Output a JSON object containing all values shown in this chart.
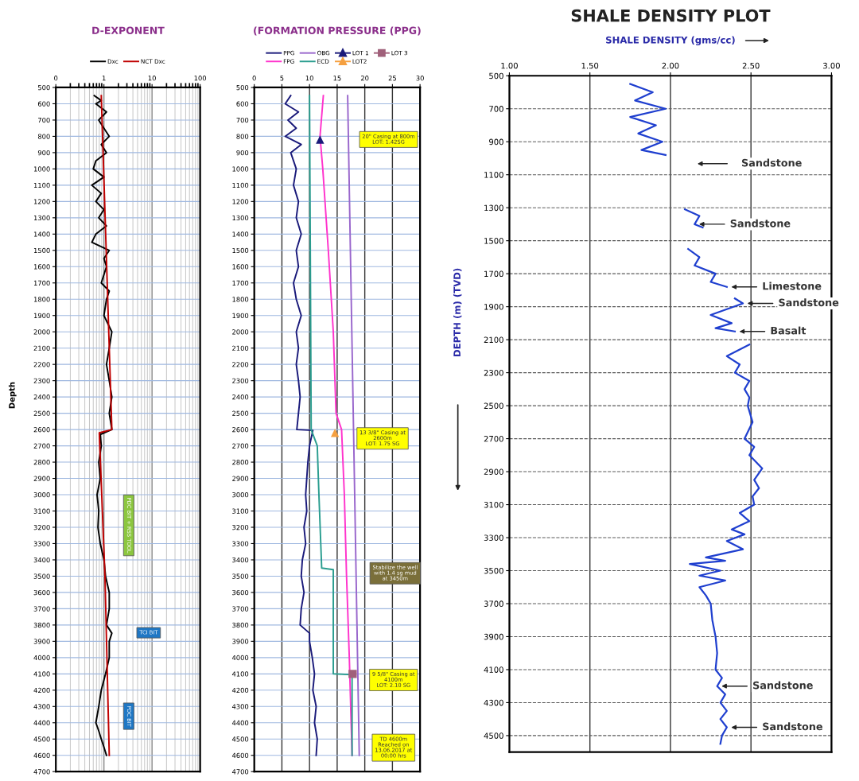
{
  "chart_data": [
    {
      "type": "line",
      "orientation": "horizontal",
      "title": "D-EXPONENT",
      "ylabel": "Depth",
      "log": "x",
      "grid": true,
      "legend": "top",
      "xlim": [
        0.1,
        100
      ],
      "xticks": [
        {
          "value": 0.1,
          "label": "0"
        },
        1,
        10,
        100
      ],
      "ylim": [
        4700,
        500
      ],
      "yticks": [
        500,
        600,
        700,
        800,
        900,
        1000,
        1100,
        1200,
        1300,
        1400,
        1500,
        1600,
        1700,
        1800,
        1900,
        2000,
        2100,
        2200,
        2300,
        2400,
        2500,
        2600,
        2700,
        2800,
        2900,
        3000,
        3100,
        3200,
        3300,
        3400,
        3500,
        3600,
        3700,
        3800,
        3900,
        4000,
        4100,
        4200,
        4300,
        4400,
        4500,
        4600,
        4700
      ],
      "series": [
        {
          "name": "Dxc",
          "color": "#000000",
          "x": [
            550,
            580,
            600,
            650,
            700,
            750,
            800,
            850,
            900,
            950,
            1000,
            1050,
            1100,
            1150,
            1200,
            1250,
            1300,
            1350,
            1400,
            1450,
            1500,
            1550,
            1600,
            1700,
            1750,
            1800,
            1900,
            2000,
            2100,
            2200,
            2300,
            2400,
            2500,
            2600,
            2630,
            2700,
            2800,
            2900,
            3000,
            3100,
            3200,
            3300,
            3400,
            3500,
            3600,
            3700,
            3800,
            3850,
            3900,
            4000,
            4100,
            4200,
            4300,
            4400,
            4450,
            4500,
            4550,
            4600
          ],
          "values": [
            0.63,
            0.88,
            0.68,
            1.13,
            0.78,
            1.0,
            1.29,
            0.88,
            1.13,
            0.68,
            0.6,
            1.0,
            0.56,
            0.88,
            0.68,
            1.0,
            0.78,
            1.13,
            0.68,
            0.56,
            1.29,
            1.0,
            1.13,
            0.88,
            1.29,
            1.13,
            1.0,
            1.46,
            1.29,
            1.13,
            1.29,
            1.46,
            1.29,
            1.46,
            0.84,
            0.88,
            0.78,
            0.84,
            0.72,
            0.78,
            0.75,
            0.84,
            1.0,
            1.08,
            1.29,
            1.29,
            1.13,
            1.46,
            1.29,
            1.29,
            1.08,
            0.88,
            0.78,
            0.68,
            0.78,
            0.88,
            1.0,
            1.13
          ]
        },
        {
          "name": "NCT Dxc",
          "color": "#c00000",
          "x": [
            550,
            2600,
            2620,
            3500,
            4600
          ],
          "values": [
            0.88,
            1.46,
            0.8,
            1.05,
            1.29
          ]
        }
      ],
      "annotations": [
        "PDC BIT + RSS TOOL",
        "TCI BIT",
        "PDC BIT"
      ]
    },
    {
      "type": "line",
      "orientation": "horizontal",
      "title": "(FORMATION PRESSURE (PPG)",
      "grid": true,
      "legend": "top",
      "xlim": [
        0,
        30
      ],
      "xticks": [
        0,
        5,
        10,
        15,
        20,
        25,
        30
      ],
      "ylim": [
        4700,
        500
      ],
      "yticks": [
        500,
        600,
        700,
        800,
        900,
        1000,
        1100,
        1200,
        1300,
        1400,
        1500,
        1600,
        1700,
        1800,
        1900,
        2000,
        2100,
        2200,
        2300,
        2400,
        2500,
        2600,
        2700,
        2800,
        2900,
        3000,
        3100,
        3200,
        3300,
        3400,
        3500,
        3600,
        3700,
        3800,
        3900,
        4000,
        4100,
        4200,
        4300,
        4400,
        4500,
        4600,
        4700
      ],
      "series": [
        {
          "name": "PPG",
          "color": "#1a1a7a",
          "x": [
            550,
            600,
            650,
            700,
            750,
            800,
            850,
            900,
            1000,
            1100,
            1200,
            1300,
            1400,
            1500,
            1600,
            1700,
            1800,
            1900,
            2000,
            2100,
            2200,
            2300,
            2400,
            2500,
            2600,
            2605,
            2700,
            2800,
            2900,
            3000,
            3100,
            3200,
            3300,
            3400,
            3500,
            3600,
            3700,
            3800,
            3850,
            3900,
            4000,
            4100,
            4200,
            4300,
            4400,
            4500,
            4600
          ],
          "values": [
            6.6,
            5.6,
            8.0,
            6.1,
            7.6,
            5.6,
            8.5,
            6.6,
            7.6,
            7.1,
            8.0,
            7.6,
            8.5,
            7.6,
            8.0,
            7.1,
            7.6,
            8.5,
            7.6,
            8.0,
            7.6,
            8.0,
            8.3,
            8.0,
            7.7,
            10.6,
            10.0,
            9.7,
            9.5,
            9.3,
            9.5,
            9.0,
            9.3,
            8.7,
            8.5,
            9.0,
            8.5,
            8.3,
            10.0,
            10.0,
            10.5,
            10.9,
            10.6,
            11.2,
            10.9,
            11.4,
            11.2
          ]
        },
        {
          "name": "FPG",
          "color": "#ff33cc",
          "x": [
            550,
            800,
            1000,
            1500,
            2000,
            2500,
            2600,
            3000,
            3500,
            4000,
            4600
          ],
          "values": [
            12.5,
            11.9,
            12.4,
            13.4,
            14.3,
            14.8,
            15.8,
            16.3,
            16.7,
            17.2,
            17.7
          ]
        },
        {
          "name": "OBG",
          "color": "#9966cc",
          "x": [
            550,
            4600
          ],
          "values": [
            16.9,
            19.0
          ]
        },
        {
          "name": "ECD",
          "color": "#2a9d8f",
          "x": [
            550,
            2600,
            2700,
            3000,
            3450,
            3460,
            4100,
            4105,
            4600
          ],
          "values": [
            10.0,
            10.3,
            11.4,
            11.7,
            12.2,
            14.3,
            14.3,
            17.7,
            17.7
          ]
        },
        {
          "name": "LOT 1",
          "type": "scatter",
          "marker": "triangle",
          "color": "#1a1a7a",
          "x": [
            820
          ],
          "values": [
            11.9
          ]
        },
        {
          "name": "LOT2",
          "type": "scatter",
          "marker": "triangle",
          "color": "#f5a040",
          "x": [
            2620
          ],
          "values": [
            14.6
          ]
        },
        {
          "name": "LOT 3",
          "type": "scatter",
          "marker": "square",
          "color": "#a0607a",
          "x": [
            4100
          ],
          "values": [
            17.8
          ]
        }
      ],
      "annotations": [
        "20\" Casing at 800m\nLOT: 1.42SG",
        "13 3/8\" Casing at\n2600m\nLOT: 1.75 SG",
        "Stabilize the well\nwith 1.4 sg mud\nat 3450m",
        "9 5/8\" Casing at\n4100m\nLOT: 2.10 SG",
        "TD 4600m\nReached on\n13.06.2017 at\n00:00 hrs"
      ]
    },
    {
      "type": "line",
      "orientation": "horizontal",
      "title": "SHALE DENSITY PLOT",
      "xlabel": "SHALE DENSITY (gms/cc)",
      "ylabel": "DEPTH (m) (TVD)",
      "grid": true,
      "xlim": [
        1.0,
        3.0
      ],
      "xticks": [
        {
          "value": 1.0,
          "label": "1.00"
        },
        {
          "value": 1.5,
          "label": "1.50"
        },
        {
          "value": 2.0,
          "label": "2.00"
        },
        {
          "value": 2.5,
          "label": "2.50"
        },
        {
          "value": 3.0,
          "label": "3.00"
        }
      ],
      "ylim": [
        4600,
        500
      ],
      "yticks": [
        500,
        700,
        900,
        1100,
        1300,
        1500,
        1700,
        1900,
        2100,
        2300,
        2500,
        2700,
        2900,
        3100,
        3300,
        3500,
        3700,
        3900,
        4100,
        4300,
        4500
      ],
      "series": [
        {
          "color": "#1f3fcf",
          "x": [
            550,
            600,
            650,
            700,
            750,
            800,
            850,
            900,
            950,
            980,
            1150,
            1310,
            1350,
            1400,
            1420,
            1480,
            1550,
            1600,
            1650,
            1700,
            1750,
            1780,
            1815,
            1850,
            1880,
            1950,
            2000,
            2030,
            2050,
            2090,
            2130,
            2200,
            2250,
            2300,
            2350,
            2400,
            2450,
            2500,
            2600,
            2700,
            2750,
            2800,
            2880,
            2950,
            3000,
            3050,
            3100,
            3150,
            3200,
            3250,
            3280,
            3320,
            3370,
            3420,
            3440,
            3460,
            3500,
            3530,
            3560,
            3600,
            3650,
            3700,
            3800,
            3900,
            4000,
            4100,
            4150,
            4200,
            4250,
            4300,
            4350,
            4400,
            4450,
            4500,
            4550
          ],
          "values": [
            1.75,
            1.89,
            1.78,
            1.97,
            1.75,
            1.91,
            1.8,
            1.95,
            1.82,
            1.97,
            null,
            2.09,
            2.18,
            2.15,
            2.2,
            null,
            2.11,
            2.18,
            2.15,
            2.28,
            2.25,
            2.35,
            null,
            2.4,
            2.45,
            2.25,
            2.38,
            2.28,
            2.4,
            null,
            2.49,
            2.35,
            2.43,
            2.4,
            2.49,
            2.46,
            2.49,
            2.48,
            2.51,
            2.46,
            2.52,
            2.49,
            2.57,
            2.52,
            2.55,
            2.51,
            2.52,
            2.43,
            2.49,
            2.38,
            2.46,
            2.35,
            2.45,
            2.22,
            2.34,
            2.12,
            2.31,
            2.18,
            2.34,
            2.18,
            2.22,
            2.25,
            2.26,
            2.28,
            2.29,
            2.28,
            2.32,
            2.29,
            2.34,
            2.31,
            2.35,
            2.31,
            2.35,
            2.32,
            2.31
          ]
        }
      ],
      "annotations": [
        "Sandstone",
        {
          "text": "Sandstone",
          "x": 2.15,
          "y": 1400
        },
        {
          "text": "Limestone",
          "x": 2.35,
          "y": 1780
        },
        {
          "text": "Sandstone",
          "x": 2.45,
          "y": 1880
        },
        {
          "text": "Basalt",
          "x": 2.4,
          "y": 2050
        },
        {
          "text": "Sandstone",
          "x": 2.29,
          "y": 4200
        },
        {
          "text": "Sandstone",
          "x": 2.35,
          "y": 4450
        }
      ]
    }
  ]
}
